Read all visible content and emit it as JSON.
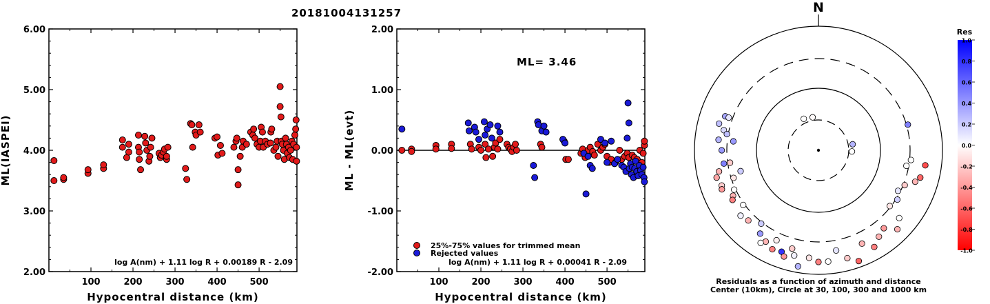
{
  "title": "20181004131257",
  "colors": {
    "red": "#e21a1a",
    "blue": "#1a1ad9",
    "border": "#000000"
  },
  "chart_data": [
    {
      "type": "scatter",
      "xlabel": "Hypocentral distance (km)",
      "ylabel": "ML(IASPEI)",
      "xlim": [
        0,
        590
      ],
      "ylim": [
        2,
        6
      ],
      "xticks": [
        "100",
        "200",
        "300",
        "400",
        "500"
      ],
      "yticks": [
        "2.00",
        "3.00",
        "4.00",
        "5.00",
        "6.00"
      ],
      "formula": "log A(nm) + 1.11 log R + 0.00189 R - 2.09",
      "points": [
        [
          12,
          3.83
        ],
        [
          12,
          3.5
        ],
        [
          35,
          3.52
        ],
        [
          35,
          3.55
        ],
        [
          93,
          3.62
        ],
        [
          93,
          3.68
        ],
        [
          130,
          3.7
        ],
        [
          130,
          3.76
        ],
        [
          175,
          4.17
        ],
        [
          175,
          4.05
        ],
        [
          185,
          3.88
        ],
        [
          190,
          3.97
        ],
        [
          190,
          4.1
        ],
        [
          213,
          4.25
        ],
        [
          213,
          4.05
        ],
        [
          215,
          3.97
        ],
        [
          215,
          3.85
        ],
        [
          218,
          3.68
        ],
        [
          228,
          4.23
        ],
        [
          230,
          4.12
        ],
        [
          233,
          4.0
        ],
        [
          238,
          3.82
        ],
        [
          240,
          3.9
        ],
        [
          242,
          4.05
        ],
        [
          245,
          4.2
        ],
        [
          262,
          3.95
        ],
        [
          265,
          3.88
        ],
        [
          268,
          3.92
        ],
        [
          272,
          3.97
        ],
        [
          275,
          4.02
        ],
        [
          280,
          3.85
        ],
        [
          280,
          3.9
        ],
        [
          283,
          4.05
        ],
        [
          325,
          3.7
        ],
        [
          328,
          3.52
        ],
        [
          337,
          4.44
        ],
        [
          340,
          4.42
        ],
        [
          342,
          4.05
        ],
        [
          348,
          4.3
        ],
        [
          350,
          4.25
        ],
        [
          357,
          4.42
        ],
        [
          360,
          4.3
        ],
        [
          395,
          4.2
        ],
        [
          400,
          4.22
        ],
        [
          402,
          3.92
        ],
        [
          408,
          4.08
        ],
        [
          412,
          3.95
        ],
        [
          440,
          4.05
        ],
        [
          445,
          4.15
        ],
        [
          447,
          4.2
        ],
        [
          450,
          3.68
        ],
        [
          450,
          3.43
        ],
        [
          455,
          3.9
        ],
        [
          460,
          4.05
        ],
        [
          462,
          4.15
        ],
        [
          470,
          4.1
        ],
        [
          480,
          4.3
        ],
        [
          485,
          4.25
        ],
        [
          487,
          4.35
        ],
        [
          490,
          4.2
        ],
        [
          495,
          4.1
        ],
        [
          500,
          4.05
        ],
        [
          503,
          4.15
        ],
        [
          505,
          4.38
        ],
        [
          508,
          4.3
        ],
        [
          510,
          4.05
        ],
        [
          515,
          4.15
        ],
        [
          520,
          4.1
        ],
        [
          527,
          4.12
        ],
        [
          528,
          4.3
        ],
        [
          530,
          4.35
        ],
        [
          535,
          4.0
        ],
        [
          540,
          4.05
        ],
        [
          543,
          4.15
        ],
        [
          545,
          3.9
        ],
        [
          550,
          5.05
        ],
        [
          550,
          4.72
        ],
        [
          552,
          4.55
        ],
        [
          553,
          4.15
        ],
        [
          555,
          4.1
        ],
        [
          558,
          4.0
        ],
        [
          560,
          3.85
        ],
        [
          563,
          4.2
        ],
        [
          565,
          4.1
        ],
        [
          567,
          3.95
        ],
        [
          570,
          4.05
        ],
        [
          572,
          3.88
        ],
        [
          575,
          4.0
        ],
        [
          578,
          4.15
        ],
        [
          580,
          3.85
        ],
        [
          582,
          4.1
        ],
        [
          585,
          4.25
        ],
        [
          587,
          4.35
        ],
        [
          588,
          4.5
        ],
        [
          589,
          3.82
        ],
        [
          590,
          4.05
        ]
      ]
    },
    {
      "type": "scatter",
      "xlabel": "Hypocentral distance (km)",
      "ylabel": "ML - ML(evt)",
      "xlim": [
        0,
        590
      ],
      "ylim": [
        -2,
        2
      ],
      "xticks": [
        "100",
        "200",
        "300",
        "400",
        "500"
      ],
      "yticks": [
        "-2.00",
        "-1.00",
        "0.00",
        "1.00",
        "2.00"
      ],
      "annotation": "ML= 3.46",
      "legend": [
        "25%-75% values for trimmed mean",
        "Rejected values"
      ],
      "formula": "log A(nm) + 1.11 log R + 0.00041 R - 2.09",
      "series": [
        {
          "name": "25%-75% values for trimmed mean",
          "color": "red",
          "points": [
            [
              12,
              0.0
            ],
            [
              35,
              0.02
            ],
            [
              35,
              -0.02
            ],
            [
              93,
              0.08
            ],
            [
              93,
              0.02
            ],
            [
              130,
              0.1
            ],
            [
              130,
              0.03
            ],
            [
              175,
              0.1
            ],
            [
              178,
              0.02
            ],
            [
              195,
              0.05
            ],
            [
              200,
              0.0
            ],
            [
              210,
              0.1
            ],
            [
              212,
              -0.12
            ],
            [
              218,
              0.02
            ],
            [
              228,
              -0.1
            ],
            [
              232,
              0.05
            ],
            [
              235,
              0.12
            ],
            [
              240,
              0.02
            ],
            [
              245,
              0.18
            ],
            [
              262,
              0.1
            ],
            [
              266,
              0.05
            ],
            [
              270,
              0.02
            ],
            [
              274,
              -0.02
            ],
            [
              278,
              0.05
            ],
            [
              282,
              0.1
            ],
            [
              285,
              0.0
            ],
            [
              342,
              0.1
            ],
            [
              345,
              0.05
            ],
            [
              398,
              0.15
            ],
            [
              402,
              -0.15
            ],
            [
              408,
              -0.15
            ],
            [
              438,
              -0.05
            ],
            [
              442,
              0.02
            ],
            [
              448,
              -0.12
            ],
            [
              455,
              0.0
            ],
            [
              460,
              0.05
            ],
            [
              466,
              -0.02
            ],
            [
              470,
              -0.08
            ],
            [
              478,
              0.1
            ],
            [
              485,
              0.0
            ],
            [
              490,
              0.05
            ],
            [
              495,
              0.1
            ],
            [
              500,
              -0.1
            ],
            [
              505,
              -0.2
            ],
            [
              510,
              -0.15
            ],
            [
              520,
              -0.2
            ],
            [
              530,
              0.0
            ],
            [
              535,
              -0.15
            ],
            [
              542,
              -0.1
            ],
            [
              548,
              -0.05
            ],
            [
              552,
              -0.12
            ],
            [
              560,
              -0.08
            ],
            [
              565,
              -0.12
            ],
            [
              572,
              -0.15
            ],
            [
              578,
              0.0
            ],
            [
              583,
              -0.2
            ],
            [
              586,
              -0.05
            ],
            [
              589,
              0.08
            ],
            [
              590,
              0.15
            ]
          ]
        },
        {
          "name": "Rejected values",
          "color": "blue",
          "points": [
            [
              12,
              0.35
            ],
            [
              170,
              0.45
            ],
            [
              172,
              0.32
            ],
            [
              185,
              0.38
            ],
            [
              188,
              0.3
            ],
            [
              195,
              0.18
            ],
            [
              208,
              0.47
            ],
            [
              210,
              0.25
            ],
            [
              215,
              0.35
            ],
            [
              222,
              0.42
            ],
            [
              226,
              0.2
            ],
            [
              240,
              0.4
            ],
            [
              245,
              0.3
            ],
            [
              325,
              -0.25
            ],
            [
              328,
              -0.45
            ],
            [
              335,
              0.47
            ],
            [
              337,
              0.42
            ],
            [
              345,
              0.32
            ],
            [
              350,
              0.4
            ],
            [
              355,
              0.3
            ],
            [
              395,
              0.18
            ],
            [
              400,
              0.12
            ],
            [
              445,
              -0.05
            ],
            [
              450,
              -0.72
            ],
            [
              455,
              -0.1
            ],
            [
              460,
              -0.25
            ],
            [
              465,
              -0.3
            ],
            [
              485,
              0.18
            ],
            [
              495,
              0.12
            ],
            [
              500,
              -0.2
            ],
            [
              510,
              0.15
            ],
            [
              518,
              -0.22
            ],
            [
              525,
              -0.15
            ],
            [
              535,
              -0.25
            ],
            [
              540,
              -0.28
            ],
            [
              545,
              -0.35
            ],
            [
              548,
              0.2
            ],
            [
              550,
              0.78
            ],
            [
              552,
              0.45
            ],
            [
              553,
              -0.3
            ],
            [
              556,
              -0.22
            ],
            [
              558,
              -0.4
            ],
            [
              560,
              -0.28
            ],
            [
              563,
              -0.45
            ],
            [
              566,
              -0.3
            ],
            [
              568,
              -0.18
            ],
            [
              571,
              -0.35
            ],
            [
              574,
              -0.42
            ],
            [
              577,
              -0.25
            ],
            [
              580,
              -0.33
            ],
            [
              583,
              -0.4
            ],
            [
              586,
              -0.28
            ],
            [
              588,
              -0.45
            ],
            [
              590,
              -0.52
            ]
          ]
        }
      ]
    },
    {
      "type": "polar-scatter",
      "north_label": "N",
      "caption_line1": "Residuals as a function of azimuth and distance",
      "caption_line2": "Center (10km), Circle at 30, 100, 300 and 1000 km",
      "colorbar_title": "Res",
      "colorbar_ticks": [
        "1.0",
        "0.8",
        "0.6",
        "0.4",
        "0.2",
        "0.0",
        "-0.2",
        "-0.4",
        "-0.6",
        "-0.8",
        "-1.0"
      ],
      "rings_km": [
        30,
        100,
        300,
        1000
      ],
      "points": [
        [
          335,
          0.28,
          0.0
        ],
        [
          350,
          0.27,
          -0.02
        ],
        [
          80,
          0.28,
          0.3
        ],
        [
          92,
          0.27,
          0.0
        ],
        [
          285,
          0.83,
          0.25
        ],
        [
          290,
          0.8,
          0.35
        ],
        [
          282,
          0.78,
          0.15
        ],
        [
          276,
          0.81,
          0.3
        ],
        [
          280,
          0.75,
          0.25
        ],
        [
          270,
          0.78,
          0.4
        ],
        [
          262,
          0.77,
          0.5
        ],
        [
          290,
          0.77,
          0.1
        ],
        [
          276,
          0.69,
          0.4
        ],
        [
          262,
          0.72,
          -0.2
        ],
        [
          258,
          0.82,
          -0.3
        ],
        [
          255,
          0.85,
          -0.35
        ],
        [
          250,
          0.83,
          -0.2
        ],
        [
          248,
          0.84,
          -0.4
        ],
        [
          245,
          0.75,
          0.0
        ],
        [
          252,
          0.72,
          -0.1
        ],
        [
          255,
          0.65,
          0.2
        ],
        [
          242,
          0.78,
          -0.3
        ],
        [
          240,
          0.8,
          -0.5
        ],
        [
          234,
          0.75,
          0.0
        ],
        [
          230,
          0.82,
          0.05
        ],
        [
          225,
          0.8,
          -0.3
        ],
        [
          218,
          0.75,
          0.2
        ],
        [
          215,
          0.82,
          0.4
        ],
        [
          210,
          0.85,
          -0.3
        ],
        [
          205,
          0.88,
          -0.5
        ],
        [
          200,
          0.87,
          0.8
        ],
        [
          198,
          0.9,
          -0.4
        ],
        [
          193,
          0.87,
          0.05
        ],
        [
          190,
          0.95,
          0.3
        ],
        [
          212,
          0.88,
          0.0
        ],
        [
          205,
          0.8,
          -0.05
        ],
        [
          195,
          0.82,
          -0.2
        ],
        [
          185,
          0.87,
          -0.1
        ],
        [
          180,
          0.9,
          -0.5
        ],
        [
          175,
          0.9,
          0.0
        ],
        [
          165,
          0.9,
          -0.2
        ],
        [
          160,
          0.95,
          -0.6
        ],
        [
          170,
          0.82,
          0.1
        ],
        [
          155,
          0.83,
          -0.3
        ],
        [
          150,
          0.9,
          -0.5
        ],
        [
          145,
          0.85,
          -0.3
        ],
        [
          140,
          0.82,
          -0.4
        ],
        [
          135,
          0.9,
          -0.3
        ],
        [
          130,
          0.85,
          0.0
        ],
        [
          128,
          0.73,
          -0.1
        ],
        [
          122,
          0.75,
          0.2
        ],
        [
          117,
          0.72,
          0.1
        ],
        [
          112,
          0.75,
          -0.2
        ],
        [
          108,
          0.82,
          -0.3
        ],
        [
          105,
          0.85,
          -0.6
        ],
        [
          98,
          0.87,
          -0.7
        ],
        [
          96,
          0.75,
          0.0
        ],
        [
          100,
          0.72,
          0.0
        ],
        [
          74,
          0.75,
          0.5
        ]
      ]
    }
  ]
}
